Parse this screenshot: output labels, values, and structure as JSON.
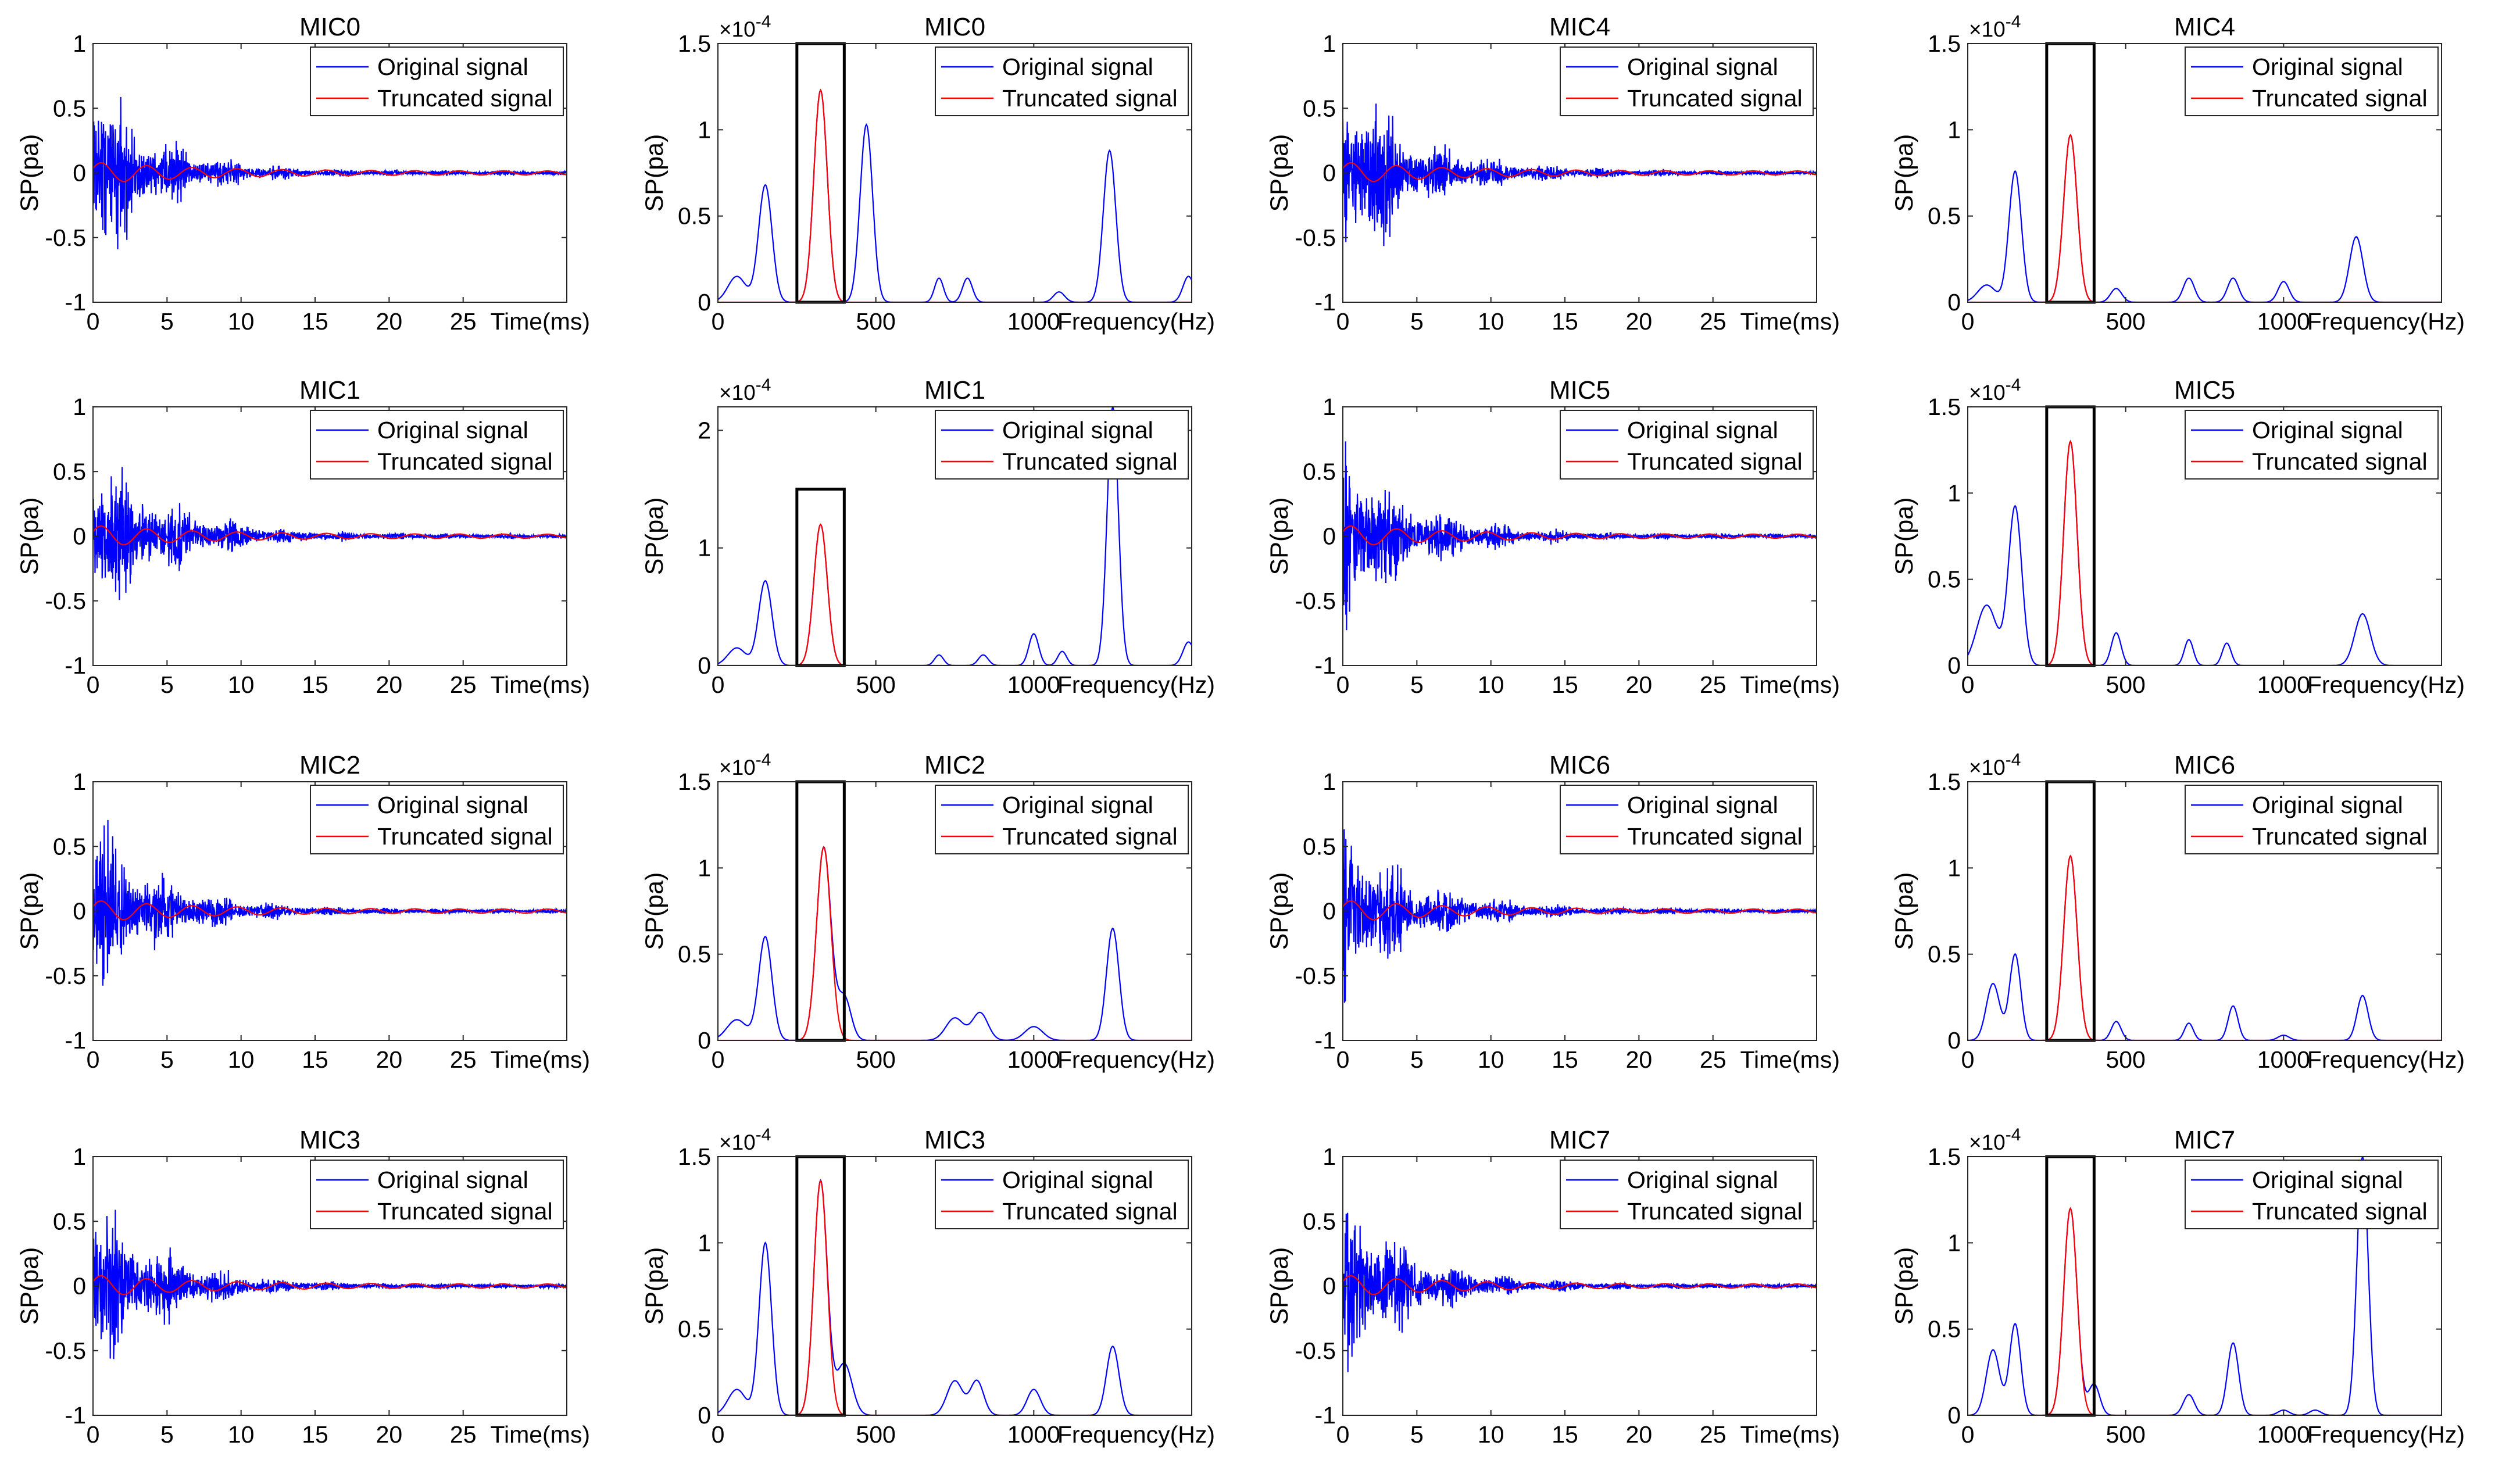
{
  "figure": {
    "description_labels": {
      "legend_original": "Original signal",
      "legend_truncated": "Truncated signal",
      "time_xlabel": "Time(ms)",
      "freq_xlabel": "Frequency(Hz)",
      "ylabel": "SP(pa)",
      "freq_exponent": "×10",
      "freq_exponent_power": "-4"
    },
    "colors": {
      "original": "#0000ff",
      "truncated": "#ff0000",
      "box": "#000000",
      "axes": "#262626"
    }
  },
  "chart_data": [
    {
      "id": "t0",
      "type": "line",
      "domain": "time",
      "title": "MIC0",
      "xlabel": "Time(ms)",
      "ylabel": "SP(pa)",
      "xlim": [
        0,
        32
      ],
      "ylim": [
        -1,
        1
      ],
      "xticks": [
        0,
        5,
        10,
        15,
        20,
        25
      ],
      "yticks": [
        -1,
        -0.5,
        0,
        0.5,
        1
      ],
      "seed": 11,
      "decay": 4.2,
      "amp": 0.95,
      "series": [
        {
          "name": "Original signal",
          "color": "#0000ff"
        },
        {
          "name": "Truncated signal",
          "color": "#ff0000"
        }
      ]
    },
    {
      "id": "f0",
      "type": "line",
      "domain": "frequency",
      "title": "MIC0",
      "xlabel": "Frequency(Hz)",
      "ylabel": "SP(pa)",
      "xlim": [
        0,
        1500
      ],
      "ylim": [
        0,
        1.5
      ],
      "xticks": [
        0,
        500,
        1000
      ],
      "yticks": [
        0,
        0.5,
        1,
        1.5
      ],
      "exponent": -4,
      "highlight_box": {
        "x": [
          250,
          400
        ],
        "y": [
          0,
          1.5
        ]
      },
      "truncated_peak": {
        "center": 325,
        "height": 1.23,
        "width": 30
      },
      "peaks": [
        [
          60,
          0.15,
          40
        ],
        [
          150,
          0.68,
          30
        ],
        [
          325,
          1.23,
          30
        ],
        [
          470,
          1.03,
          28
        ],
        [
          700,
          0.14,
          20
        ],
        [
          790,
          0.14,
          22
        ],
        [
          1080,
          0.06,
          25
        ],
        [
          1240,
          0.88,
          28
        ],
        [
          1490,
          0.15,
          25
        ]
      ]
    },
    {
      "id": "t4",
      "type": "line",
      "domain": "time",
      "title": "MIC4",
      "xlabel": "Time(ms)",
      "ylabel": "SP(pa)",
      "xlim": [
        0,
        32
      ],
      "ylim": [
        -1,
        1
      ],
      "xticks": [
        0,
        5,
        10,
        15,
        20,
        25
      ],
      "yticks": [
        -1,
        -0.5,
        0,
        0.5,
        1
      ],
      "seed": 47,
      "decay": 4.8,
      "amp": 1.0,
      "series": [
        {
          "name": "Original signal",
          "color": "#0000ff"
        },
        {
          "name": "Truncated signal",
          "color": "#ff0000"
        }
      ]
    },
    {
      "id": "f4",
      "type": "line",
      "domain": "frequency",
      "title": "MIC4",
      "xlabel": "Frequency(Hz)",
      "ylabel": "SP(pa)",
      "xlim": [
        0,
        1500
      ],
      "ylim": [
        0,
        1.5
      ],
      "xticks": [
        0,
        500,
        1000
      ],
      "yticks": [
        0,
        0.5,
        1,
        1.5
      ],
      "exponent": -4,
      "highlight_box": {
        "x": [
          250,
          400
        ],
        "y": [
          0,
          1.5
        ]
      },
      "truncated_peak": {
        "center": 325,
        "height": 0.97,
        "width": 30
      },
      "peaks": [
        [
          60,
          0.1,
          40
        ],
        [
          150,
          0.76,
          28
        ],
        [
          325,
          0.97,
          30
        ],
        [
          470,
          0.08,
          25
        ],
        [
          700,
          0.14,
          25
        ],
        [
          840,
          0.14,
          25
        ],
        [
          1000,
          0.12,
          25
        ],
        [
          1230,
          0.38,
          30
        ]
      ]
    },
    {
      "id": "t1",
      "type": "line",
      "domain": "time",
      "title": "MIC1",
      "xlabel": "Time(ms)",
      "ylabel": "SP(pa)",
      "xlim": [
        0,
        32
      ],
      "ylim": [
        -1,
        1
      ],
      "xticks": [
        0,
        5,
        10,
        15,
        20,
        25
      ],
      "yticks": [
        -1,
        -0.5,
        0,
        0.5,
        1
      ],
      "seed": 23,
      "decay": 4.6,
      "amp": 0.95,
      "series": [
        {
          "name": "Original signal",
          "color": "#0000ff"
        },
        {
          "name": "Truncated signal",
          "color": "#ff0000"
        }
      ]
    },
    {
      "id": "f1",
      "type": "line",
      "domain": "frequency",
      "title": "MIC1",
      "xlabel": "Frequency(Hz)",
      "ylabel": "SP(pa)",
      "xlim": [
        0,
        1500
      ],
      "ylim": [
        0,
        2.2
      ],
      "xticks": [
        0,
        500,
        1000
      ],
      "yticks": [
        0,
        1,
        2
      ],
      "exponent": -4,
      "highlight_box": {
        "x": [
          250,
          400
        ],
        "y": [
          0,
          1.5
        ]
      },
      "truncated_peak": {
        "center": 325,
        "height": 1.2,
        "width": 30
      },
      "peaks": [
        [
          60,
          0.15,
          40
        ],
        [
          150,
          0.72,
          30
        ],
        [
          325,
          1.2,
          30
        ],
        [
          700,
          0.09,
          20
        ],
        [
          840,
          0.09,
          22
        ],
        [
          1000,
          0.27,
          22
        ],
        [
          1090,
          0.12,
          20
        ],
        [
          1250,
          2.2,
          25
        ],
        [
          1490,
          0.2,
          25
        ]
      ]
    },
    {
      "id": "t5",
      "type": "line",
      "domain": "time",
      "title": "MIC5",
      "xlabel": "Time(ms)",
      "ylabel": "SP(pa)",
      "xlim": [
        0,
        32
      ],
      "ylim": [
        -1,
        1
      ],
      "xticks": [
        0,
        5,
        10,
        15,
        20,
        25
      ],
      "yticks": [
        -1,
        -0.5,
        0,
        0.5,
        1
      ],
      "seed": 59,
      "decay": 4.6,
      "amp": 0.95,
      "series": [
        {
          "name": "Original signal",
          "color": "#0000ff"
        },
        {
          "name": "Truncated signal",
          "color": "#ff0000"
        }
      ]
    },
    {
      "id": "f5",
      "type": "line",
      "domain": "frequency",
      "title": "MIC5",
      "xlabel": "Frequency(Hz)",
      "ylabel": "SP(pa)",
      "xlim": [
        0,
        1500
      ],
      "ylim": [
        0,
        1.5
      ],
      "xticks": [
        0,
        500,
        1000
      ],
      "yticks": [
        0,
        0.5,
        1,
        1.5
      ],
      "exponent": -4,
      "highlight_box": {
        "x": [
          250,
          400
        ],
        "y": [
          0,
          1.5
        ]
      },
      "truncated_peak": {
        "center": 325,
        "height": 1.3,
        "width": 30
      },
      "peaks": [
        [
          60,
          0.35,
          45
        ],
        [
          150,
          0.92,
          30
        ],
        [
          325,
          1.3,
          30
        ],
        [
          470,
          0.19,
          22
        ],
        [
          700,
          0.15,
          20
        ],
        [
          820,
          0.13,
          20
        ],
        [
          1250,
          0.3,
          35
        ]
      ]
    },
    {
      "id": "t2",
      "type": "line",
      "domain": "time",
      "title": "MIC2",
      "xlabel": "Time(ms)",
      "ylabel": "SP(pa)",
      "xlim": [
        0,
        32
      ],
      "ylim": [
        -1,
        1
      ],
      "xticks": [
        0,
        5,
        10,
        15,
        20,
        25
      ],
      "yticks": [
        -1,
        -0.5,
        0,
        0.5,
        1
      ],
      "seed": 31,
      "decay": 4.4,
      "amp": 0.9,
      "series": [
        {
          "name": "Original signal",
          "color": "#0000ff"
        },
        {
          "name": "Truncated signal",
          "color": "#ff0000"
        }
      ]
    },
    {
      "id": "f2",
      "type": "line",
      "domain": "frequency",
      "title": "MIC2",
      "xlabel": "Frequency(Hz)",
      "ylabel": "SP(pa)",
      "xlim": [
        0,
        1500
      ],
      "ylim": [
        0,
        1.5
      ],
      "xticks": [
        0,
        500,
        1000
      ],
      "yticks": [
        0,
        0.5,
        1,
        1.5
      ],
      "exponent": -4,
      "highlight_box": {
        "x": [
          250,
          400
        ],
        "y": [
          0,
          1.5
        ]
      },
      "truncated_peak": {
        "center": 335,
        "height": 1.12,
        "width": 32
      },
      "peaks": [
        [
          60,
          0.12,
          45
        ],
        [
          150,
          0.6,
          30
        ],
        [
          335,
          1.12,
          32
        ],
        [
          400,
          0.25,
          30
        ],
        [
          750,
          0.13,
          40
        ],
        [
          830,
          0.16,
          35
        ],
        [
          1000,
          0.08,
          40
        ],
        [
          1250,
          0.65,
          28
        ]
      ]
    },
    {
      "id": "t6",
      "type": "line",
      "domain": "time",
      "title": "MIC6",
      "xlabel": "Time(ms)",
      "ylabel": "SP(pa)",
      "xlim": [
        0,
        32
      ],
      "ylim": [
        -1,
        1
      ],
      "xticks": [
        0,
        5,
        10,
        15,
        20,
        25
      ],
      "yticks": [
        -1,
        -0.5,
        0,
        0.5,
        1
      ],
      "seed": 71,
      "decay": 4.7,
      "amp": 0.9,
      "series": [
        {
          "name": "Original signal",
          "color": "#0000ff"
        },
        {
          "name": "Truncated signal",
          "color": "#ff0000"
        }
      ]
    },
    {
      "id": "f6",
      "type": "line",
      "domain": "frequency",
      "title": "MIC6",
      "xlabel": "Frequency(Hz)",
      "ylabel": "SP(pa)",
      "xlim": [
        0,
        1500
      ],
      "ylim": [
        0,
        1.5
      ],
      "xticks": [
        0,
        500,
        1000
      ],
      "yticks": [
        0,
        0.5,
        1,
        1.5
      ],
      "exponent": -4,
      "highlight_box": {
        "x": [
          250,
          400
        ],
        "y": [
          0,
          1.5
        ]
      },
      "truncated_peak": {
        "center": 325,
        "height": 1.07,
        "width": 30
      },
      "peaks": [
        [
          80,
          0.33,
          30
        ],
        [
          150,
          0.5,
          25
        ],
        [
          325,
          1.07,
          30
        ],
        [
          470,
          0.11,
          22
        ],
        [
          700,
          0.1,
          20
        ],
        [
          840,
          0.2,
          22
        ],
        [
          1000,
          0.03,
          25
        ],
        [
          1250,
          0.26,
          25
        ]
      ]
    },
    {
      "id": "t3",
      "type": "line",
      "domain": "time",
      "title": "MIC3",
      "xlabel": "Time(ms)",
      "ylabel": "SP(pa)",
      "xlim": [
        0,
        32
      ],
      "ylim": [
        -1,
        1
      ],
      "xticks": [
        0,
        5,
        10,
        15,
        20,
        25
      ],
      "yticks": [
        -1,
        -0.5,
        0,
        0.5,
        1
      ],
      "seed": 37,
      "decay": 4.5,
      "amp": 0.95,
      "series": [
        {
          "name": "Original signal",
          "color": "#0000ff"
        },
        {
          "name": "Truncated signal",
          "color": "#ff0000"
        }
      ]
    },
    {
      "id": "f3",
      "type": "line",
      "domain": "frequency",
      "title": "MIC3",
      "xlabel": "Frequency(Hz)",
      "ylabel": "SP(pa)",
      "xlim": [
        0,
        1500
      ],
      "ylim": [
        0,
        1.5
      ],
      "xticks": [
        0,
        500,
        1000
      ],
      "yticks": [
        0,
        0.5,
        1,
        1.5
      ],
      "exponent": -4,
      "highlight_box": {
        "x": [
          250,
          400
        ],
        "y": [
          0,
          1.5
        ]
      },
      "truncated_peak": {
        "center": 325,
        "height": 1.36,
        "width": 30
      },
      "peaks": [
        [
          60,
          0.15,
          40
        ],
        [
          150,
          1.0,
          28
        ],
        [
          325,
          1.36,
          30
        ],
        [
          400,
          0.3,
          35
        ],
        [
          750,
          0.2,
          35
        ],
        [
          820,
          0.2,
          30
        ],
        [
          1000,
          0.15,
          30
        ],
        [
          1250,
          0.4,
          28
        ]
      ]
    },
    {
      "id": "t7",
      "type": "line",
      "domain": "time",
      "title": "MIC7",
      "xlabel": "Time(ms)",
      "ylabel": "SP(pa)",
      "xlim": [
        0,
        32
      ],
      "ylim": [
        -1,
        1
      ],
      "xticks": [
        0,
        5,
        10,
        15,
        20,
        25
      ],
      "yticks": [
        -1,
        -0.5,
        0,
        0.5,
        1
      ],
      "seed": 83,
      "decay": 4.5,
      "amp": 0.95,
      "series": [
        {
          "name": "Original signal",
          "color": "#0000ff"
        },
        {
          "name": "Truncated signal",
          "color": "#ff0000"
        }
      ]
    },
    {
      "id": "f7",
      "type": "line",
      "domain": "frequency",
      "title": "MIC7",
      "xlabel": "Frequency(Hz)",
      "ylabel": "SP(pa)",
      "xlim": [
        0,
        1500
      ],
      "ylim": [
        0,
        1.5
      ],
      "xticks": [
        0,
        500,
        1000
      ],
      "yticks": [
        0,
        0.5,
        1,
        1.5
      ],
      "exponent": -4,
      "highlight_box": {
        "x": [
          250,
          400
        ],
        "y": [
          0,
          1.5
        ]
      },
      "truncated_peak": {
        "center": 325,
        "height": 1.2,
        "width": 30
      },
      "peaks": [
        [
          80,
          0.38,
          30
        ],
        [
          150,
          0.53,
          25
        ],
        [
          325,
          1.2,
          30
        ],
        [
          400,
          0.18,
          25
        ],
        [
          700,
          0.12,
          25
        ],
        [
          840,
          0.42,
          25
        ],
        [
          1000,
          0.03,
          25
        ],
        [
          1100,
          0.03,
          25
        ],
        [
          1250,
          1.5,
          25
        ]
      ]
    }
  ]
}
